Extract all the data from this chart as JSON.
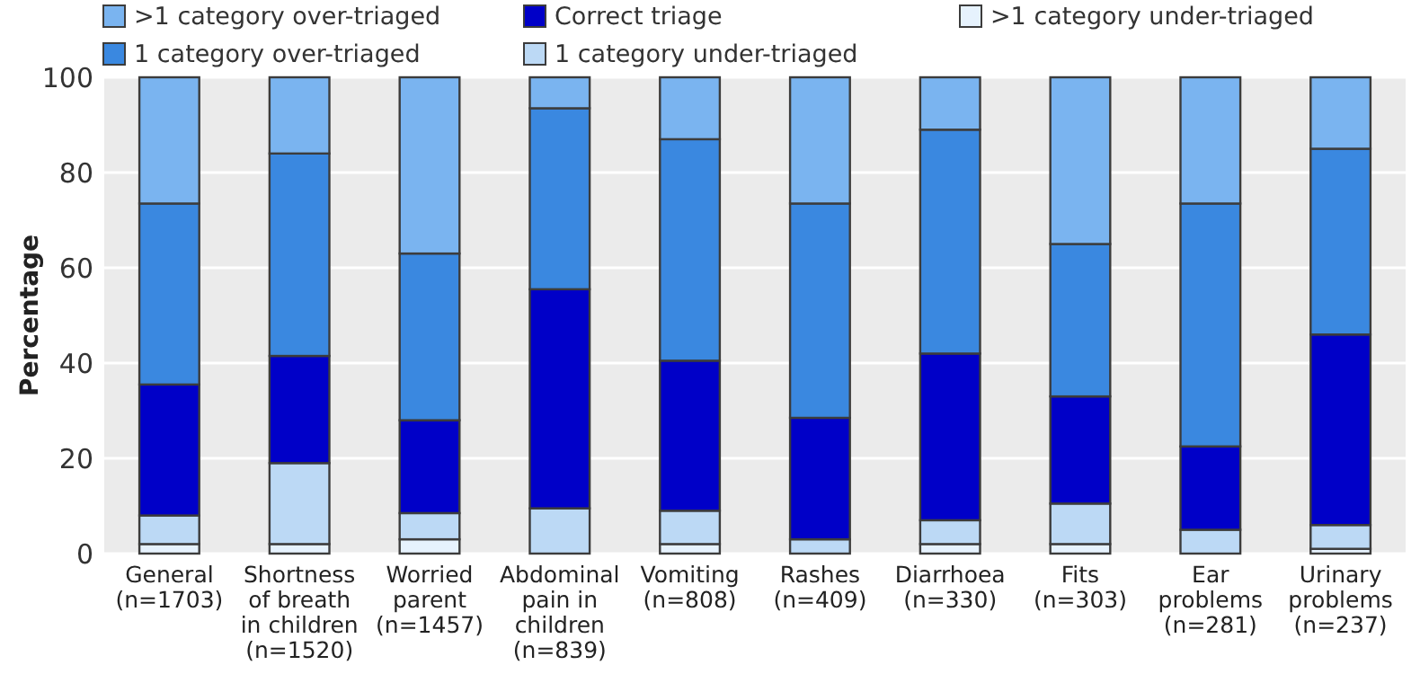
{
  "chart_data": {
    "type": "bar",
    "stacked": true,
    "ylabel": "Percentage",
    "ylim": [
      0,
      100
    ],
    "yticks": [
      0,
      20,
      40,
      60,
      80,
      100
    ],
    "grid": "y",
    "legend": "top",
    "categories": [
      "General\n(n=1703)",
      "Shortness\nof breath\nin children\n(n=1520)",
      "Worried\nparent\n(n=1457)",
      "Abdominal\npain in\nchildren\n(n=839)",
      "Vomiting\n(n=808)",
      "Rashes\n(n=409)",
      "Diarrhoea\n(n=330)",
      "Fits\n(n=303)",
      "Ear\nproblems\n(n=281)",
      "Urinary\nproblems\n(n=237)"
    ],
    "series": [
      {
        "name": ">1 category under-triaged",
        "color": "#e6f2fd",
        "values": [
          2,
          2,
          3,
          0,
          2,
          0,
          2,
          2,
          0,
          1
        ]
      },
      {
        "name": "1 category under-triaged",
        "color": "#bcd9f5",
        "values": [
          6,
          17,
          5.5,
          9.5,
          7,
          3,
          5,
          8.5,
          5,
          5
        ]
      },
      {
        "name": "Correct triage",
        "color": "#0000c8",
        "values": [
          27.5,
          22.5,
          19.5,
          46,
          31.5,
          25.5,
          35,
          22.5,
          17.5,
          40
        ]
      },
      {
        "name": "1 category over-triaged",
        "color": "#3a88e0",
        "values": [
          38,
          42.5,
          35,
          38,
          46.5,
          45,
          47,
          32,
          51,
          39
        ]
      },
      {
        "name": ">1 category over-triaged",
        "color": "#7ab4f0",
        "values": [
          26.5,
          16,
          37,
          6.5,
          13,
          26.5,
          11,
          35,
          26.5,
          15
        ]
      }
    ]
  }
}
